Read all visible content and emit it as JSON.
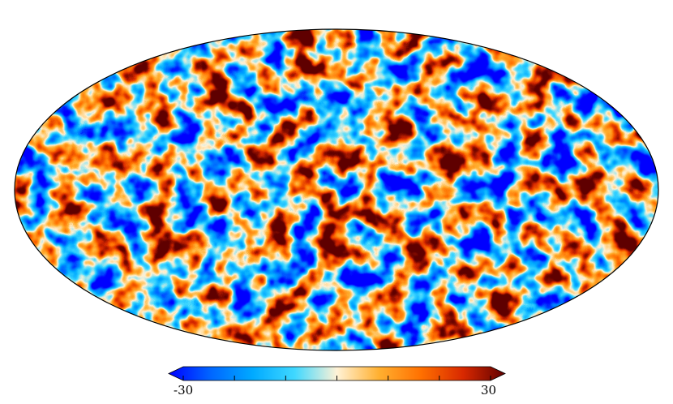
{
  "figure": {
    "projection": "mollweide",
    "colormap": [
      "#0000ff",
      "#0066ff",
      "#00aaff",
      "#40d8ff",
      "#fff2d6",
      "#ffb030",
      "#ff7000",
      "#d82800",
      "#600000"
    ],
    "outline_color": "#000000"
  },
  "colorbar": {
    "min_label": "-30",
    "max_label": "30",
    "min": -30,
    "max": 30,
    "extend": "both",
    "ticks": [
      -30,
      -20,
      -10,
      0,
      10,
      20,
      30
    ]
  }
}
